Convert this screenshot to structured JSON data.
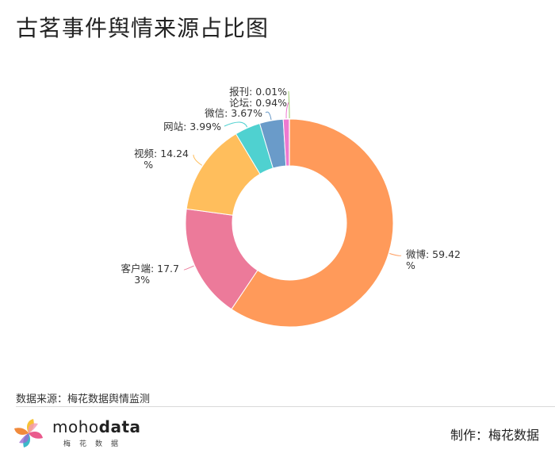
{
  "title": "古茗事件舆情来源占比图",
  "source": "数据来源：梅花数据舆情监测",
  "credit": "制作：梅花数据",
  "logo": {
    "main": "moho",
    "bold": "data",
    "sub": "梅花数据"
  },
  "chart_data": {
    "type": "pie",
    "variant": "donut",
    "title": "古茗事件舆情来源占比图",
    "slices": [
      {
        "name": "微博",
        "value": 59.42,
        "label": [
          "微博: 59.42",
          "%"
        ],
        "color": "#ff9a5a"
      },
      {
        "name": "客户端",
        "value": 17.73,
        "label": [
          "客户端: 17.7",
          "3%"
        ],
        "color": "#ec7a9a"
      },
      {
        "name": "视频",
        "value": 14.24,
        "label": [
          "视频: 14.24",
          "%"
        ],
        "color": "#ffbe5c"
      },
      {
        "name": "网站",
        "value": 3.99,
        "label": [
          "网站: 3.99%"
        ],
        "color": "#4fd1d0"
      },
      {
        "name": "微信",
        "value": 3.67,
        "label": [
          "微信: 3.67%"
        ],
        "color": "#6a9bc9"
      },
      {
        "name": "论坛",
        "value": 0.94,
        "label": [
          "论坛: 0.94%"
        ],
        "color": "#ee79d0"
      },
      {
        "name": "报刊",
        "value": 0.01,
        "label": [
          "报刊: 0.01%"
        ],
        "color": "#9acb6b"
      }
    ]
  }
}
